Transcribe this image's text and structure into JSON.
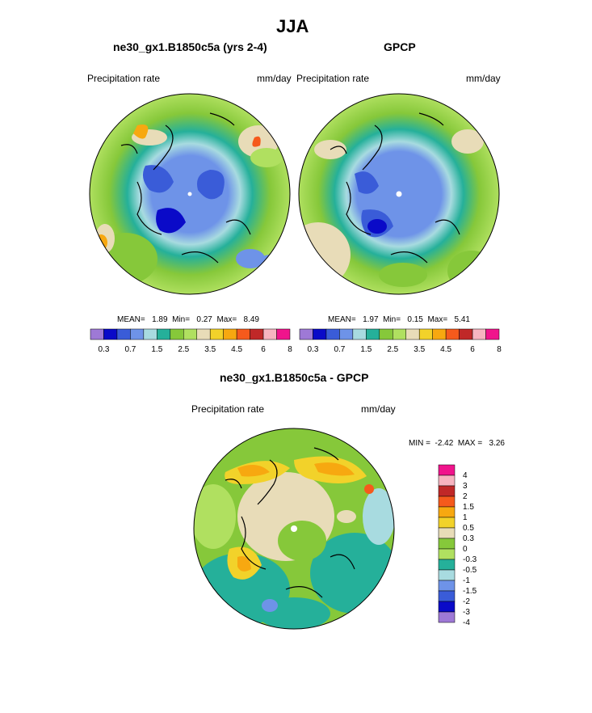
{
  "main_title": "JJA",
  "panels": [
    {
      "title": "ne30_gx1.B1850c5a (yrs 2-4)",
      "left_label": "Precipitation rate",
      "right_label": "mm/day",
      "stats": {
        "mean_label": "MEAN=",
        "mean": "1.89",
        "min_label": "Min=",
        "min": "0.27",
        "max_label": "Max=",
        "max": "8.49"
      }
    },
    {
      "title": "GPCP",
      "left_label": "Precipitation rate",
      "right_label": "mm/day",
      "stats": {
        "mean_label": "MEAN=",
        "mean": "1.97",
        "min_label": "Min=",
        "min": "0.15",
        "max_label": "Max=",
        "max": "5.41"
      }
    }
  ],
  "diff_panel": {
    "title": "ne30_gx1.B1850c5a - GPCP",
    "left_label": "Precipitation rate",
    "right_label": "mm/day",
    "minmax": {
      "min_label": "MIN =",
      "min": "-2.42",
      "max_label": "MAX =",
      "max": "3.26"
    }
  },
  "colorbar_abs": {
    "colors": [
      "#9e79d6",
      "#0a0ac8",
      "#3a5cd8",
      "#6e93e8",
      "#a8dbe0",
      "#25b09a",
      "#86c83a",
      "#b0e060",
      "#e8dcb8",
      "#f2d22a",
      "#f7a810",
      "#f55a1c",
      "#c02828",
      "#f7b4c0",
      "#f0148c"
    ],
    "tick_labels": [
      "0.3",
      "0.7",
      "1.5",
      "2.5",
      "3.5",
      "4.5",
      "6",
      "8"
    ]
  },
  "colorbar_diff": {
    "colors_top_to_bottom": [
      "#f0148c",
      "#f7b4c0",
      "#c02828",
      "#f55a1c",
      "#f7a810",
      "#f2d22a",
      "#e8dcb8",
      "#86c83a",
      "#b0e060",
      "#25b09a",
      "#a8dbe0",
      "#6e93e8",
      "#3a5cd8",
      "#0a0ac8",
      "#9e79d6"
    ],
    "tick_labels": [
      "4",
      "3",
      "2",
      "1.5",
      "1",
      "0.5",
      "0.3",
      "0",
      "-0.3",
      "-0.5",
      "-1",
      "-1.5",
      "-2",
      "-3",
      "-4"
    ]
  }
}
